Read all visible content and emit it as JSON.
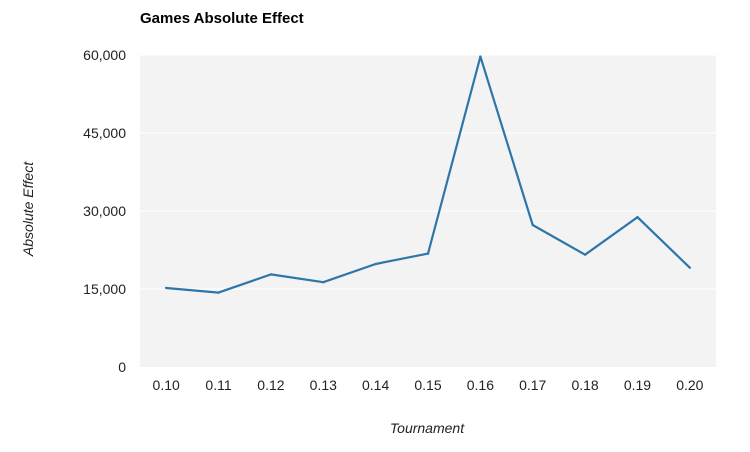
{
  "chart_data": {
    "type": "line",
    "title": "Games Absolute Effect",
    "xlabel": "Tournament",
    "ylabel": "Absolute Effect",
    "categories": [
      "0.10",
      "0.11",
      "0.12",
      "0.13",
      "0.14",
      "0.15",
      "0.16",
      "0.17",
      "0.18",
      "0.19",
      "0.20"
    ],
    "series": [
      {
        "values": [
          15200,
          14300,
          17800,
          16300,
          19800,
          21800,
          59700,
          27300,
          21600,
          28800,
          19100
        ]
      }
    ],
    "ylim": [
      0,
      60000
    ],
    "yticks": [
      0,
      15000,
      30000,
      45000,
      60000
    ],
    "ytick_labels": [
      "0",
      "15,000",
      "30,000",
      "45,000",
      "60,000"
    ],
    "grid": true,
    "colors": {
      "line": "#2e75a8",
      "plot_bg": "#f3f3f3",
      "grid": "#ffffff"
    }
  }
}
